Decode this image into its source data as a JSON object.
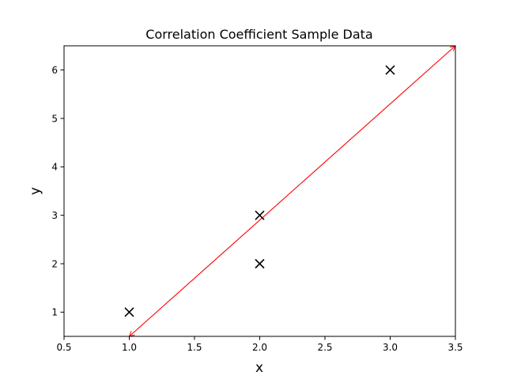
{
  "chart_data": {
    "type": "scatter",
    "title": "Correlation Coefficient Sample Data",
    "xlabel": "x",
    "ylabel": "y",
    "xlim": [
      0.5,
      3.5
    ],
    "ylim": [
      0.5,
      6.5
    ],
    "xticks": [
      0.5,
      1.0,
      1.5,
      2.0,
      2.5,
      3.0,
      3.5
    ],
    "xtick_labels": [
      "0.5",
      "1.0",
      "1.5",
      "2.0",
      "2.5",
      "3.0",
      "3.5"
    ],
    "yticks": [
      1,
      2,
      3,
      4,
      5,
      6
    ],
    "ytick_labels": [
      "1",
      "2",
      "3",
      "4",
      "5",
      "6"
    ],
    "grid": false,
    "marker": "x",
    "marker_color": "#000000",
    "points": [
      {
        "x": 1,
        "y": 1
      },
      {
        "x": 2,
        "y": 2
      },
      {
        "x": 2,
        "y": 3
      },
      {
        "x": 3,
        "y": 6
      }
    ],
    "annotations": [
      {
        "type": "double-arrow",
        "from": {
          "x": 1.0,
          "y": 0.5
        },
        "to": {
          "x": 3.5,
          "y": 6.5
        },
        "color": "#ff0000"
      }
    ]
  }
}
